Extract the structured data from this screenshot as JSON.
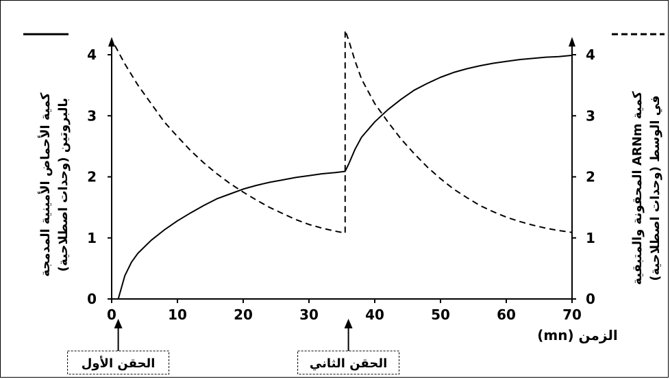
{
  "chart_data": {
    "type": "line",
    "xlabel": "الزمن (mn)",
    "xlim": [
      0,
      70
    ],
    "x_ticks": [
      0,
      10,
      20,
      30,
      40,
      50,
      60,
      70
    ],
    "ylabel_left_line1": "كمية الأحماض الأمينية المدمجة",
    "ylabel_left_line2": "بالبروتين (وحدات اصطلاحية)",
    "ylabel_right_line1": "كمية ARNm المحقونة والمتبقية",
    "ylabel_right_line2": "في الوسط  (وحدات اصطلاحية)",
    "ylim_left": [
      0,
      4
    ],
    "ylim_right": [
      0,
      4
    ],
    "y_ticks": [
      0,
      1,
      2,
      3,
      4
    ],
    "series": [
      {
        "style": "solid",
        "axis": "left",
        "x": [
          1,
          2,
          3,
          4,
          6,
          8,
          10,
          12,
          14,
          16,
          18,
          20,
          22,
          24,
          26,
          28,
          30,
          32,
          34,
          35.5,
          36,
          37,
          38,
          40,
          42,
          44,
          46,
          48,
          50,
          52,
          54,
          56,
          58,
          60,
          62,
          64,
          66,
          68,
          70
        ],
        "values": [
          0,
          0.38,
          0.6,
          0.75,
          0.96,
          1.13,
          1.28,
          1.41,
          1.53,
          1.64,
          1.72,
          1.8,
          1.86,
          1.91,
          1.95,
          1.99,
          2.02,
          2.05,
          2.07,
          2.09,
          2.2,
          2.45,
          2.65,
          2.9,
          3.1,
          3.27,
          3.42,
          3.53,
          3.63,
          3.71,
          3.77,
          3.82,
          3.86,
          3.89,
          3.92,
          3.94,
          3.96,
          3.97,
          3.99
        ]
      },
      {
        "style": "dashed",
        "axis": "right",
        "x": [
          0.5,
          2,
          4,
          6,
          8,
          10,
          12,
          14,
          16,
          18,
          20,
          22,
          24,
          26,
          28,
          30,
          32,
          34,
          35.5,
          35.5,
          36,
          37,
          38,
          40,
          42,
          44,
          46,
          48,
          50,
          52,
          54,
          56,
          58,
          60,
          62,
          64,
          66,
          68,
          70
        ],
        "values": [
          4.15,
          3.85,
          3.5,
          3.2,
          2.9,
          2.66,
          2.43,
          2.23,
          2.05,
          1.89,
          1.75,
          1.62,
          1.5,
          1.4,
          1.3,
          1.22,
          1.16,
          1.11,
          1.08,
          4.4,
          4.25,
          3.9,
          3.6,
          3.2,
          2.9,
          2.62,
          2.38,
          2.16,
          1.97,
          1.8,
          1.66,
          1.53,
          1.43,
          1.34,
          1.27,
          1.21,
          1.16,
          1.12,
          1.09
        ]
      }
    ],
    "annotations": [
      {
        "text": "الحقن الأول",
        "x": 1
      },
      {
        "text": "الحقن الثاني",
        "x": 36
      }
    ],
    "grid": false
  }
}
